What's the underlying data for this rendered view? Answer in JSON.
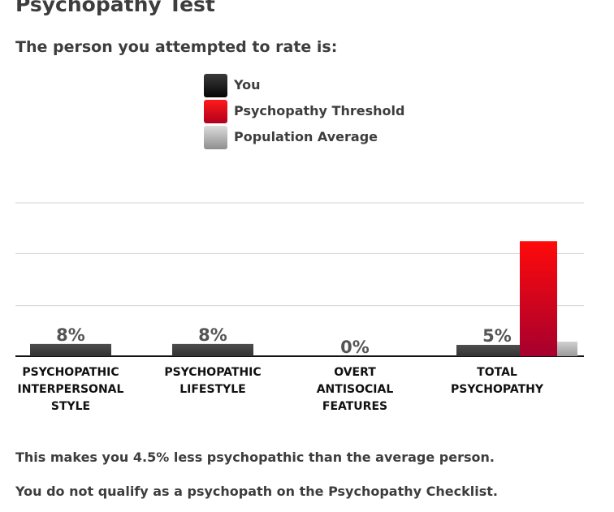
{
  "page": {
    "title": "Psychopathy Test",
    "subtitle": "The person you attempted to rate is:",
    "result_lines": [
      "This makes you 4.5% less psychopathic than the average person.",
      "You do not qualify as a psychopath on the Psychopathy Checklist."
    ]
  },
  "legend": [
    {
      "label": "You",
      "color": "#111111"
    },
    {
      "label": "Psychopathy Threshold",
      "color": "#e00018"
    },
    {
      "label": "Population Average",
      "color": "#b5b5b5"
    }
  ],
  "chart_data": {
    "type": "bar",
    "categories": [
      [
        "PSYCHOPATHIC",
        "INTERPERSONAL",
        "STYLE"
      ],
      [
        "PSYCHOPATHIC",
        "LIFESTYLE"
      ],
      [
        "OVERT",
        "ANTISOCIAL",
        "FEATURES"
      ],
      [
        "TOTAL",
        "PSYCHOPATHY"
      ]
    ],
    "series": [
      {
        "name": "You",
        "values": [
          8,
          8,
          0,
          5
        ],
        "labels": [
          "8%",
          "8%",
          "0%",
          "5%"
        ],
        "color": "#444444"
      },
      {
        "name": "Psychopathy Threshold",
        "values": [
          null,
          null,
          null,
          75
        ],
        "color": "#e00018"
      },
      {
        "name": "Population Average",
        "values": [
          null,
          null,
          null,
          9.5
        ],
        "color": "#b5b5b5"
      }
    ],
    "ylim": [
      0,
      100
    ],
    "grid": true,
    "legend_position": "top-center"
  }
}
